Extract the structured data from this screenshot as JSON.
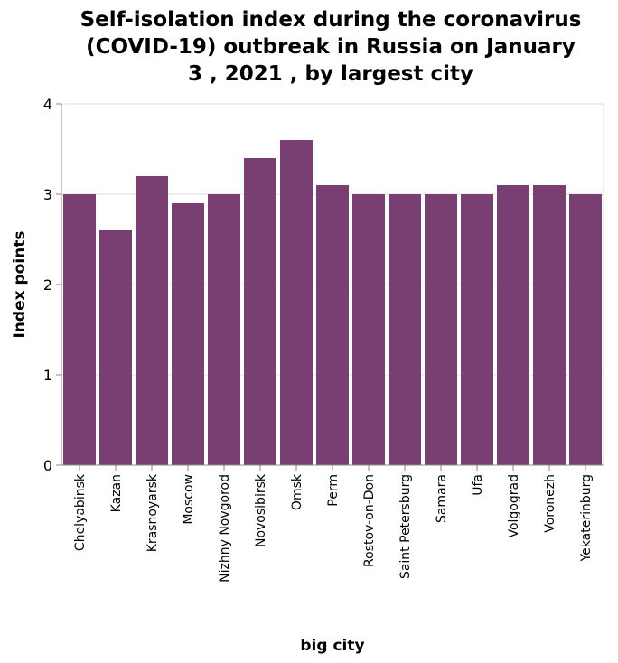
{
  "chart_data": {
    "type": "bar",
    "title_lines": [
      "Self-isolation index during the coronavirus",
      "(COVID-19) outbreak in Russia on January",
      "3 , 2021 , by largest city"
    ],
    "xlabel": "big city",
    "ylabel": "Index points",
    "ylim": [
      0,
      4
    ],
    "yticks": [
      "0",
      "1",
      "2",
      "3",
      "4"
    ],
    "grid": true,
    "bar_color": "#7a3f72",
    "categories": [
      "Chelyabinsk",
      "Kazan",
      "Krasnoyarsk",
      "Moscow",
      "Nizhny Novgorod",
      "Novosibirsk",
      "Omsk",
      "Perm",
      "Rostov-on-Don",
      "Saint Petersburg",
      "Samara",
      "Ufa",
      "Volgograd",
      "Voronezh",
      "Yekaterinburg"
    ],
    "values": [
      3.0,
      2.6,
      3.2,
      2.9,
      3.0,
      3.4,
      3.6,
      3.1,
      3.0,
      3.0,
      3.0,
      3.0,
      3.1,
      3.1,
      3.0
    ]
  }
}
